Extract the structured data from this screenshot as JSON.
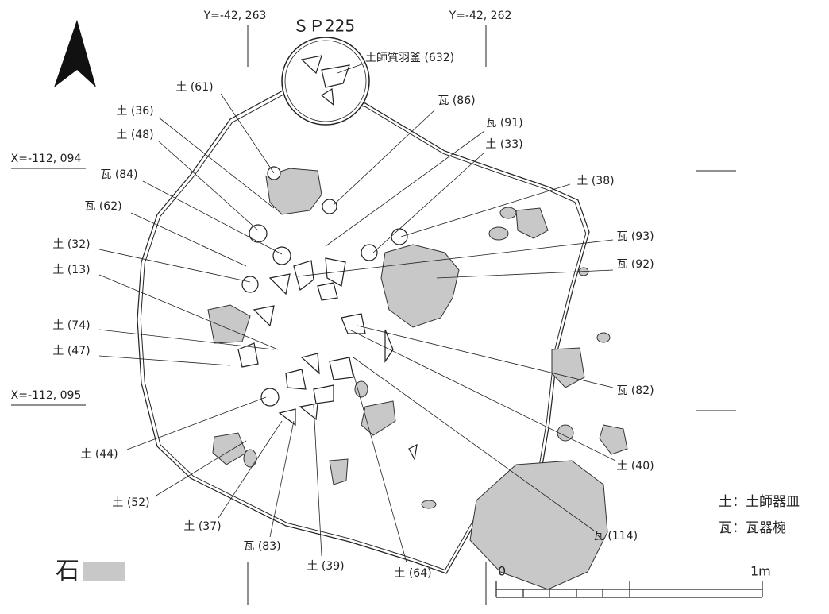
{
  "title": "ＳＰ225",
  "coords": {
    "y_left": "Y=-42, 263",
    "y_right": "Y=-42, 262",
    "x_top": "X=-112, 094",
    "x_bottom": "X=-112, 095"
  },
  "labels": [
    "土師質羽釜 (632)",
    "土 (61)",
    "瓦 (86)",
    "土 (36)",
    "瓦 (91)",
    "土 (48)",
    "土 (33)",
    "瓦 (84)",
    "土 (38)",
    "瓦 (62)",
    "土 (32)",
    "瓦 (93)",
    "土 (13)",
    "瓦 (92)",
    "土 (74)",
    "土 (47)",
    "瓦 (82)",
    "土 (44)",
    "土 (40)",
    "土 (52)",
    "土 (37)",
    "瓦 (114)",
    "瓦 (83)",
    "土 (39)",
    "土 (64)"
  ],
  "legend": {
    "stone": "石",
    "items": [
      "土：土師器皿",
      "瓦：瓦器椀"
    ]
  },
  "scale": {
    "start": "0",
    "end": "1m"
  }
}
